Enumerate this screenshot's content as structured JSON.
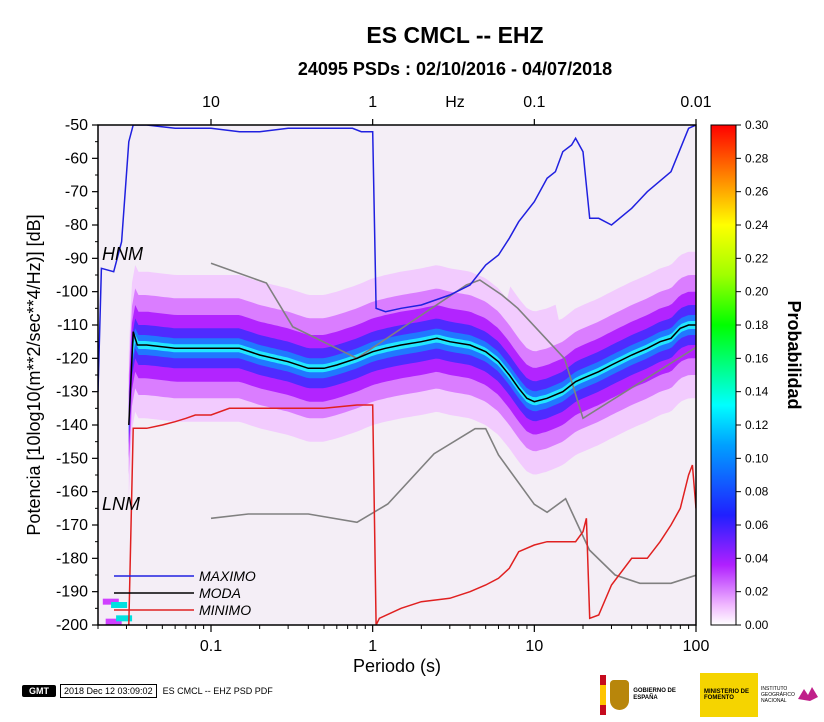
{
  "chart_data": {
    "type": "heatmap",
    "title": "ES CMCL -- EHZ",
    "subtitle": "24095 PSDs : 02/10/2016 - 04/07/2018",
    "xlabel": "Periodo (s)",
    "ylabel": "Potencia [10log10(m**2/sec**4/Hz)] [dB]",
    "xscale": "log",
    "xlim": [
      0.02,
      100
    ],
    "ylim": [
      -200,
      -50
    ],
    "x_ticks": [
      0.1,
      1,
      10,
      100
    ],
    "x_tick_labels": [
      "0.1",
      "1",
      "10",
      "100"
    ],
    "y_ticks": [
      -200,
      -190,
      -180,
      -170,
      -160,
      -150,
      -140,
      -130,
      -120,
      -110,
      -100,
      -90,
      -80,
      -70,
      -60,
      -50
    ],
    "y_tick_labels": [
      "-200",
      "-190",
      "-180",
      "-170",
      "-160",
      "-150",
      "-140",
      "-130",
      "-120",
      "-110",
      "-100",
      "-90",
      "-80",
      "-70",
      "-60",
      "-50"
    ],
    "top_axis": {
      "label": "Hz",
      "ticks": [
        10,
        1,
        0.1,
        0.01
      ],
      "tick_labels": [
        "10",
        "1",
        "0.1",
        "0.01"
      ]
    },
    "colorbar": {
      "label": "Probabilidad",
      "range": [
        0,
        0.3
      ],
      "ticks": [
        "0.00",
        "0.02",
        "0.04",
        "0.06",
        "0.08",
        "0.10",
        "0.12",
        "0.14",
        "0.16",
        "0.18",
        "0.20",
        "0.22",
        "0.24",
        "0.26",
        "0.28",
        "0.30"
      ]
    },
    "series": [
      {
        "name": "MAXIMO",
        "color": "#2020e0",
        "x": [
          0.02,
          0.021,
          0.025,
          0.028,
          0.031,
          0.033,
          0.04,
          0.06,
          0.1,
          0.15,
          0.2,
          0.3,
          0.5,
          0.75,
          0.85,
          0.9,
          1.0,
          1.05,
          1.2,
          1.5,
          2,
          3,
          4,
          5,
          6,
          7,
          8,
          10,
          12,
          13.5,
          15,
          17,
          18,
          20,
          22,
          25,
          30,
          40,
          50,
          70,
          90,
          100
        ],
        "y": [
          -130,
          -93,
          -94,
          -85,
          -55,
          -50,
          -50,
          -51,
          -51,
          -52,
          -52,
          -51,
          -51,
          -51,
          -52,
          -52,
          -52,
          -105,
          -106,
          -105,
          -104,
          -101,
          -98,
          -92,
          -89,
          -84,
          -79,
          -73,
          -66,
          -64,
          -58,
          -56,
          -54,
          -58,
          -78,
          -78,
          -80,
          -75,
          -70,
          -64,
          -51,
          -50
        ]
      },
      {
        "name": "MODA",
        "color": "#000000",
        "x": [
          0.031,
          0.033,
          0.035,
          0.04,
          0.06,
          0.1,
          0.15,
          0.2,
          0.3,
          0.4,
          0.5,
          0.6,
          0.8,
          1,
          1.2,
          1.5,
          2,
          2.5,
          3,
          4,
          5,
          6,
          7,
          8,
          9,
          10,
          12,
          15,
          18,
          20,
          25,
          30,
          40,
          50,
          60,
          70,
          80,
          90,
          100
        ],
        "y": [
          -140,
          -112,
          -116,
          -116,
          -117,
          -117,
          -117,
          -119,
          -121,
          -123,
          -123,
          -122,
          -120,
          -118,
          -117,
          -116,
          -115,
          -114,
          -115,
          -116,
          -118,
          -121,
          -125,
          -129,
          -132,
          -133,
          -132,
          -130,
          -127,
          -126,
          -124,
          -122,
          -119,
          -117,
          -115,
          -114,
          -111,
          -110,
          -110
        ]
      },
      {
        "name": "MINIMO",
        "color": "#e02020",
        "x": [
          0.031,
          0.033,
          0.035,
          0.04,
          0.05,
          0.06,
          0.07,
          0.08,
          0.1,
          0.13,
          0.2,
          0.3,
          0.5,
          0.8,
          0.95,
          1.0,
          1.05,
          1.1,
          1.5,
          2,
          3,
          4,
          5,
          6,
          7,
          8,
          10,
          12,
          15,
          18,
          20,
          21,
          22,
          25,
          30,
          40,
          50,
          60,
          70,
          80,
          90,
          95,
          100
        ],
        "y": [
          -200,
          -141,
          -141,
          -141,
          -140,
          -139,
          -138,
          -137,
          -137,
          -135,
          -135,
          -135,
          -135,
          -134,
          -134,
          -134,
          -200,
          -198,
          -195,
          -193,
          -192,
          -190,
          -188,
          -186,
          -183,
          -178,
          -176,
          -175,
          -175,
          -175,
          -172,
          -168,
          -198,
          -197,
          -188,
          -180,
          -180,
          -175,
          -170,
          -165,
          -155,
          -152,
          -165
        ]
      }
    ],
    "models": [
      {
        "name": "HNM",
        "color": "#808080",
        "x": [
          0.1,
          0.22,
          0.32,
          0.8,
          3.8,
          4.6,
          6.3,
          7.9,
          15.4,
          20,
          354
        ],
        "y": [
          -91.5,
          -97.4,
          -110.5,
          -120,
          -98,
          -96.5,
          -101,
          -105,
          -120.1,
          -138,
          -100
        ]
      },
      {
        "name": "LNM",
        "color": "#808080",
        "x": [
          0.1,
          0.17,
          0.4,
          0.8,
          1.24,
          2.4,
          4.3,
          5,
          6,
          10,
          12,
          15.6,
          21.9,
          31.6,
          45,
          70,
          101,
          154
        ],
        "y": [
          -168,
          -166.7,
          -166.7,
          -169.2,
          -163.7,
          -148.6,
          -141.1,
          -141.1,
          -149,
          -163.8,
          -166.2,
          -162.1,
          -177.5,
          -185,
          -187.5,
          -187.5,
          -185,
          -187.5
        ]
      }
    ],
    "legend": {
      "placement": "bottom-left",
      "entries": [
        "MAXIMO",
        "MODA",
        "MINIMO"
      ]
    }
  },
  "footer": {
    "logo": "GMT",
    "timestamp": "2018 Dec 12 03:09:02",
    "label": "ES CMCL -- EHZ PSD PDF"
  },
  "logos": {
    "gov": "GOBIERNO DE ESPAÑA",
    "ministry": "MINISTERIO DE FOMENTO",
    "institute": "INSTITUTO GEOGRÁFICO NACIONAL"
  }
}
